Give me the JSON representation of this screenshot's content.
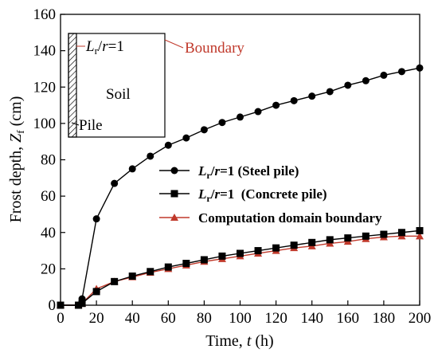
{
  "chart_data": {
    "type": "line",
    "xlabel": "Time, t (h)",
    "ylabel": "Frost depth, Zf (cm)",
    "xlim": [
      0,
      200
    ],
    "ylim": [
      0,
      160
    ],
    "xticks": [
      0,
      20,
      40,
      60,
      80,
      100,
      120,
      140,
      160,
      180,
      200
    ],
    "yticks": [
      0,
      20,
      40,
      60,
      80,
      100,
      120,
      140,
      160
    ],
    "grid": false,
    "legend_position": "bottom-right",
    "series": [
      {
        "name": "Lr/r=1 (Steel pile)",
        "marker": "circle",
        "color": "#000000",
        "x": [
          0,
          10,
          12,
          20,
          30,
          40,
          50,
          60,
          70,
          80,
          90,
          100,
          110,
          120,
          130,
          140,
          150,
          160,
          170,
          180,
          190,
          200
        ],
        "y": [
          0,
          0,
          3.5,
          47.5,
          67,
          75,
          82,
          88,
          92,
          96.5,
          100.5,
          103.5,
          106.5,
          110,
          112.5,
          115,
          117.5,
          121,
          123.5,
          126.5,
          128.5,
          130.5
        ]
      },
      {
        "name": "Lr/r=1 (Concrete pile)",
        "marker": "square",
        "color": "#000000",
        "x": [
          0,
          10,
          12,
          20,
          30,
          40,
          50,
          60,
          70,
          80,
          90,
          100,
          110,
          120,
          130,
          140,
          150,
          160,
          170,
          180,
          190,
          200
        ],
        "y": [
          0,
          0,
          1,
          7.5,
          13,
          16,
          18.5,
          21,
          23,
          25,
          27,
          28.5,
          30,
          31.5,
          33,
          34.5,
          36,
          37,
          38,
          39,
          40,
          41
        ]
      },
      {
        "name": "Computation domain boundary",
        "marker": "triangle",
        "color": "#c0392b",
        "x": [
          0,
          10,
          12,
          20,
          30,
          40,
          50,
          60,
          70,
          80,
          90,
          100,
          110,
          120,
          130,
          140,
          150,
          160,
          170,
          180,
          190,
          200
        ],
        "y": [
          0,
          0,
          1,
          9,
          13,
          15.5,
          18,
          20,
          22,
          24,
          25.5,
          27,
          28.5,
          30,
          31.5,
          32.5,
          34,
          35,
          36.5,
          37.5,
          38,
          38
        ]
      }
    ]
  },
  "legend": {
    "items": [
      {
        "lr": "L",
        "lr_sub": "r",
        "slash": "/",
        "r": "r",
        "eq": "=1",
        "suffix": " (Steel pile)"
      },
      {
        "lr": "L",
        "lr_sub": "r",
        "slash": "/",
        "r": "r",
        "eq": "=1",
        "suffix": "  (Concrete pile)"
      },
      {
        "text": "Computation domain boundary"
      }
    ]
  },
  "axes_text": {
    "x_title_pre": "Time, ",
    "x_title_var": "t",
    "x_title_post": " (h)",
    "y_title_pre": "Frost depth, ",
    "y_title_var": "Z",
    "y_title_sub": "f",
    "y_title_post": " (cm)"
  },
  "inset": {
    "ratio_l": "L",
    "ratio_sub": "r",
    "ratio_slash": "/",
    "ratio_r": "r",
    "ratio_eq": "=1",
    "boundary_label": "Boundary",
    "soil_label": "Soil",
    "pile_label": "Pile"
  }
}
